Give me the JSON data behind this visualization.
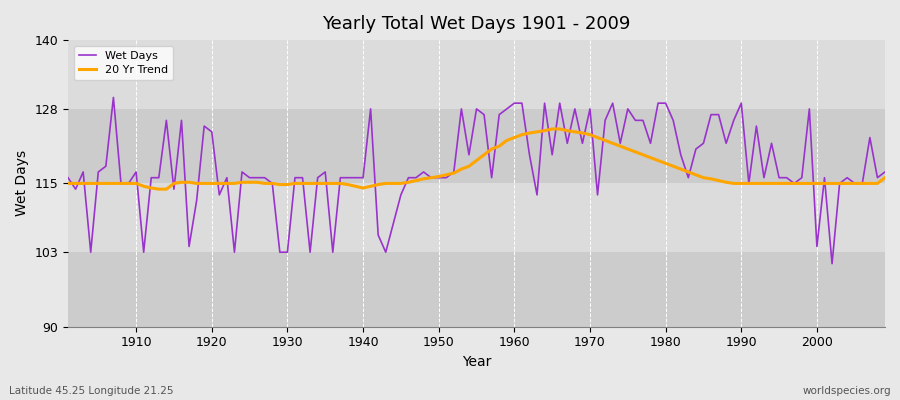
{
  "title": "Yearly Total Wet Days 1901 - 2009",
  "xlabel": "Year",
  "ylabel": "Wet Days",
  "bottom_left_label": "Latitude 45.25 Longitude 21.25",
  "bottom_right_label": "worldspecies.org",
  "line_color": "#9933CC",
  "trend_color": "#FFA500",
  "bg_color": "#E8E8E8",
  "plot_bg_color": "#DCDCDC",
  "stripe_light": "#DCDCDC",
  "stripe_dark": "#CCCCCC",
  "ylim": [
    90,
    140
  ],
  "yticks": [
    90,
    103,
    115,
    128,
    140
  ],
  "xlim": [
    1901,
    2009
  ],
  "xticks": [
    1910,
    1920,
    1930,
    1940,
    1950,
    1960,
    1970,
    1980,
    1990,
    2000
  ],
  "years": [
    1901,
    1902,
    1903,
    1904,
    1905,
    1906,
    1907,
    1908,
    1909,
    1910,
    1911,
    1912,
    1913,
    1914,
    1915,
    1916,
    1917,
    1918,
    1919,
    1920,
    1921,
    1922,
    1923,
    1924,
    1925,
    1926,
    1927,
    1928,
    1929,
    1930,
    1931,
    1932,
    1933,
    1934,
    1935,
    1936,
    1937,
    1938,
    1939,
    1940,
    1941,
    1942,
    1943,
    1944,
    1945,
    1946,
    1947,
    1948,
    1949,
    1950,
    1951,
    1952,
    1953,
    1954,
    1955,
    1956,
    1957,
    1958,
    1959,
    1960,
    1961,
    1962,
    1963,
    1964,
    1965,
    1966,
    1967,
    1968,
    1969,
    1970,
    1971,
    1972,
    1973,
    1974,
    1975,
    1976,
    1977,
    1978,
    1979,
    1980,
    1981,
    1982,
    1983,
    1984,
    1985,
    1986,
    1987,
    1988,
    1989,
    1990,
    1991,
    1992,
    1993,
    1994,
    1995,
    1996,
    1997,
    1998,
    1999,
    2000,
    2001,
    2002,
    2003,
    2004,
    2005,
    2006,
    2007,
    2008,
    2009
  ],
  "wet_days": [
    116,
    114,
    117,
    103,
    117,
    118,
    130,
    115,
    115,
    117,
    103,
    116,
    116,
    126,
    114,
    126,
    104,
    112,
    125,
    124,
    113,
    116,
    103,
    117,
    116,
    116,
    116,
    115,
    103,
    103,
    116,
    116,
    103,
    116,
    117,
    103,
    116,
    116,
    116,
    116,
    128,
    106,
    103,
    108,
    113,
    116,
    116,
    117,
    116,
    116,
    116,
    117,
    128,
    120,
    128,
    127,
    116,
    127,
    128,
    129,
    129,
    120,
    113,
    129,
    120,
    129,
    122,
    128,
    122,
    128,
    113,
    126,
    129,
    122,
    128,
    126,
    126,
    122,
    129,
    129,
    126,
    120,
    116,
    121,
    122,
    127,
    127,
    122,
    126,
    129,
    115,
    125,
    116,
    122,
    116,
    116,
    115,
    116,
    128,
    104,
    116,
    101,
    115,
    116,
    115,
    115,
    123,
    116,
    117
  ],
  "trend_values_by_year": {
    "1901": 115.0,
    "1902": 115.0,
    "1903": 115.0,
    "1904": 115.0,
    "1905": 115.0,
    "1906": 115.0,
    "1907": 115.0,
    "1908": 115.0,
    "1909": 115.0,
    "1910": 115.0,
    "1911": 114.5,
    "1912": 114.2,
    "1913": 114.0,
    "1914": 114.0,
    "1915": 115.0,
    "1916": 115.2,
    "1917": 115.2,
    "1918": 115.0,
    "1919": 115.0,
    "1920": 115.0,
    "1921": 115.0,
    "1922": 115.0,
    "1923": 115.0,
    "1924": 115.2,
    "1925": 115.2,
    "1926": 115.2,
    "1927": 115.0,
    "1928": 115.0,
    "1929": 114.8,
    "1930": 114.8,
    "1931": 115.0,
    "1932": 115.0,
    "1933": 115.0,
    "1934": 115.0,
    "1935": 115.0,
    "1936": 115.0,
    "1937": 115.0,
    "1938": 114.8,
    "1939": 114.5,
    "1940": 114.2,
    "1941": 114.5,
    "1942": 114.8,
    "1943": 115.0,
    "1944": 115.0,
    "1945": 115.0,
    "1946": 115.2,
    "1947": 115.5,
    "1948": 115.8,
    "1949": 116.0,
    "1950": 116.2,
    "1951": 116.5,
    "1952": 116.8,
    "1953": 117.5,
    "1954": 118.0,
    "1955": 119.0,
    "1956": 120.0,
    "1957": 121.0,
    "1958": 121.5,
    "1959": 122.5,
    "1960": 123.0,
    "1961": 123.5,
    "1962": 123.8,
    "1963": 124.0,
    "1964": 124.2,
    "1965": 124.5,
    "1966": 124.5,
    "1967": 124.2,
    "1968": 124.0,
    "1969": 123.8,
    "1970": 123.5,
    "1971": 123.0,
    "1972": 122.5,
    "1973": 122.0,
    "1974": 121.5,
    "1975": 121.0,
    "1976": 120.5,
    "1977": 120.0,
    "1978": 119.5,
    "1979": 119.0,
    "1980": 118.5,
    "1981": 118.0,
    "1982": 117.5,
    "1983": 117.0,
    "1984": 116.5,
    "1985": 116.0,
    "1986": 115.8,
    "1987": 115.5,
    "1988": 115.2,
    "1989": 115.0,
    "1990": 115.0,
    "1991": 115.0,
    "1992": 115.0,
    "1993": 115.0,
    "1994": 115.0,
    "1995": 115.0,
    "1996": 115.0,
    "1997": 115.0,
    "1998": 115.0,
    "1999": 115.0,
    "2000": 115.0,
    "2001": 115.0,
    "2002": 115.0,
    "2003": 115.0,
    "2004": 115.0,
    "2005": 115.0,
    "2006": 115.0,
    "2007": 115.0,
    "2008": 115.0,
    "2009": 116.0
  }
}
